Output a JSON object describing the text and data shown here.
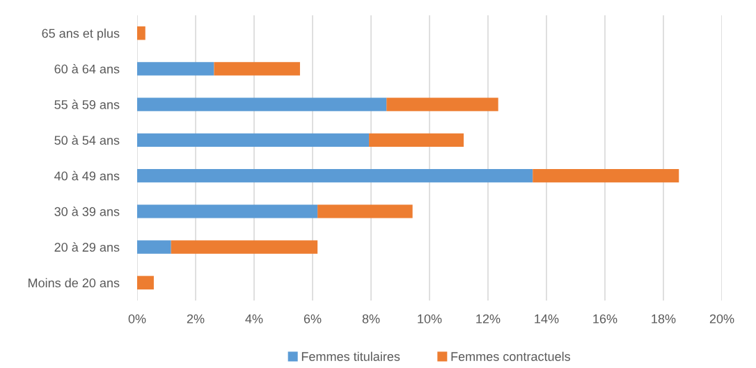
{
  "chart_data": {
    "type": "bar",
    "orientation": "horizontal",
    "stacked": true,
    "categories": [
      "65 ans et plus",
      "60 à 64 ans",
      "55 à 59 ans",
      "50 à 54 ans",
      "40 à 49 ans",
      "30 à 39 ans",
      "20 à 29 ans",
      "Moins de 20 ans"
    ],
    "series": [
      {
        "name": "Femmes titulaires",
        "color": "#5b9bd5",
        "values": [
          0,
          2.63,
          8.53,
          7.93,
          13.53,
          6.17,
          1.16,
          0
        ]
      },
      {
        "name": "Femmes contractuels",
        "color": "#ed7d31",
        "values": [
          0.28,
          2.94,
          3.82,
          3.24,
          5.0,
          3.25,
          5.01,
          0.57
        ]
      }
    ],
    "xlim": [
      0,
      20
    ],
    "xticks": [
      {
        "value": 0,
        "label": "0%"
      },
      {
        "value": 2,
        "label": "2%"
      },
      {
        "value": 4,
        "label": "4%"
      },
      {
        "value": 6,
        "label": "6%"
      },
      {
        "value": 8,
        "label": "8%"
      },
      {
        "value": 10,
        "label": "10%"
      },
      {
        "value": 12,
        "label": "12%"
      },
      {
        "value": 14,
        "label": "14%"
      },
      {
        "value": 16,
        "label": "16%"
      },
      {
        "value": 18,
        "label": "18%"
      },
      {
        "value": 20,
        "label": "20%"
      }
    ],
    "grid": "x",
    "legend": "bottom"
  }
}
